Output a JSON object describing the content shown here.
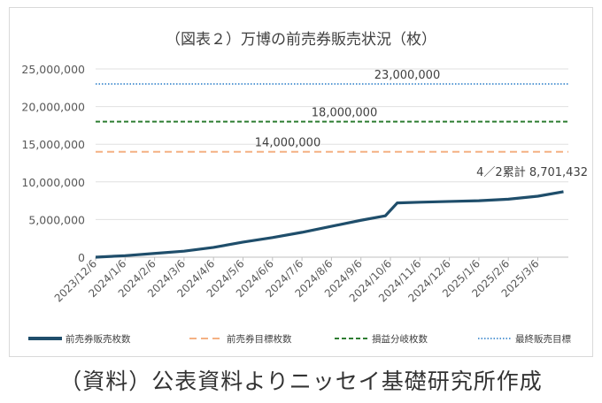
{
  "chart_data": {
    "type": "line",
    "title": "（図表２）万博の前売券販売状況（枚）",
    "xlabel": "",
    "ylabel": "",
    "ylim": [
      0,
      25000000
    ],
    "yticks": [
      "0",
      "5,000,000",
      "10,000,000",
      "15,000,000",
      "20,000,000",
      "25,000,000"
    ],
    "ytick_values": [
      0,
      5000000,
      10000000,
      15000000,
      20000000,
      25000000
    ],
    "xticks": [
      "2023/12/6",
      "2024/1/6",
      "2024/2/6",
      "2024/3/6",
      "2024/4/6",
      "2024/5/6",
      "2024/6/6",
      "2024/7/6",
      "2024/8/6",
      "2024/9/6",
      "2024/10/6",
      "2024/11/6",
      "2024/12/6",
      "2025/1/6",
      "2025/2/6",
      "2025/3/6"
    ],
    "grid": true,
    "legend_position": "bottom",
    "series": [
      {
        "name": "前売券販売枚数",
        "color": "#1f4e6b",
        "style": "solid",
        "x": [
          0,
          1,
          2,
          3,
          4,
          5,
          6,
          7,
          8,
          9,
          9.83,
          10.23,
          11,
          12,
          13,
          14,
          15,
          15.87
        ],
        "values": [
          0,
          200000,
          500000,
          800000,
          1300000,
          2000000,
          2600000,
          3300000,
          4100000,
          4900000,
          5500000,
          7200000,
          7300000,
          7400000,
          7500000,
          7700000,
          8100000,
          8701432
        ]
      },
      {
        "name": "前売券目標枚数",
        "color": "#f4b183",
        "style": "dashed",
        "constant": 14000000
      },
      {
        "name": "損益分岐枚数",
        "color": "#2e7d32",
        "style": "dashed-short",
        "constant": 18000000
      },
      {
        "name": "最終販売目標",
        "color": "#5b9bd5",
        "style": "dotted",
        "constant": 23000000
      }
    ],
    "annotations": [
      "23,000,000",
      "18,000,000",
      "14,000,000",
      "4／2累計 8,701,432"
    ]
  },
  "caption": "（資料）公表資料よりニッセイ基礎研究所作成"
}
